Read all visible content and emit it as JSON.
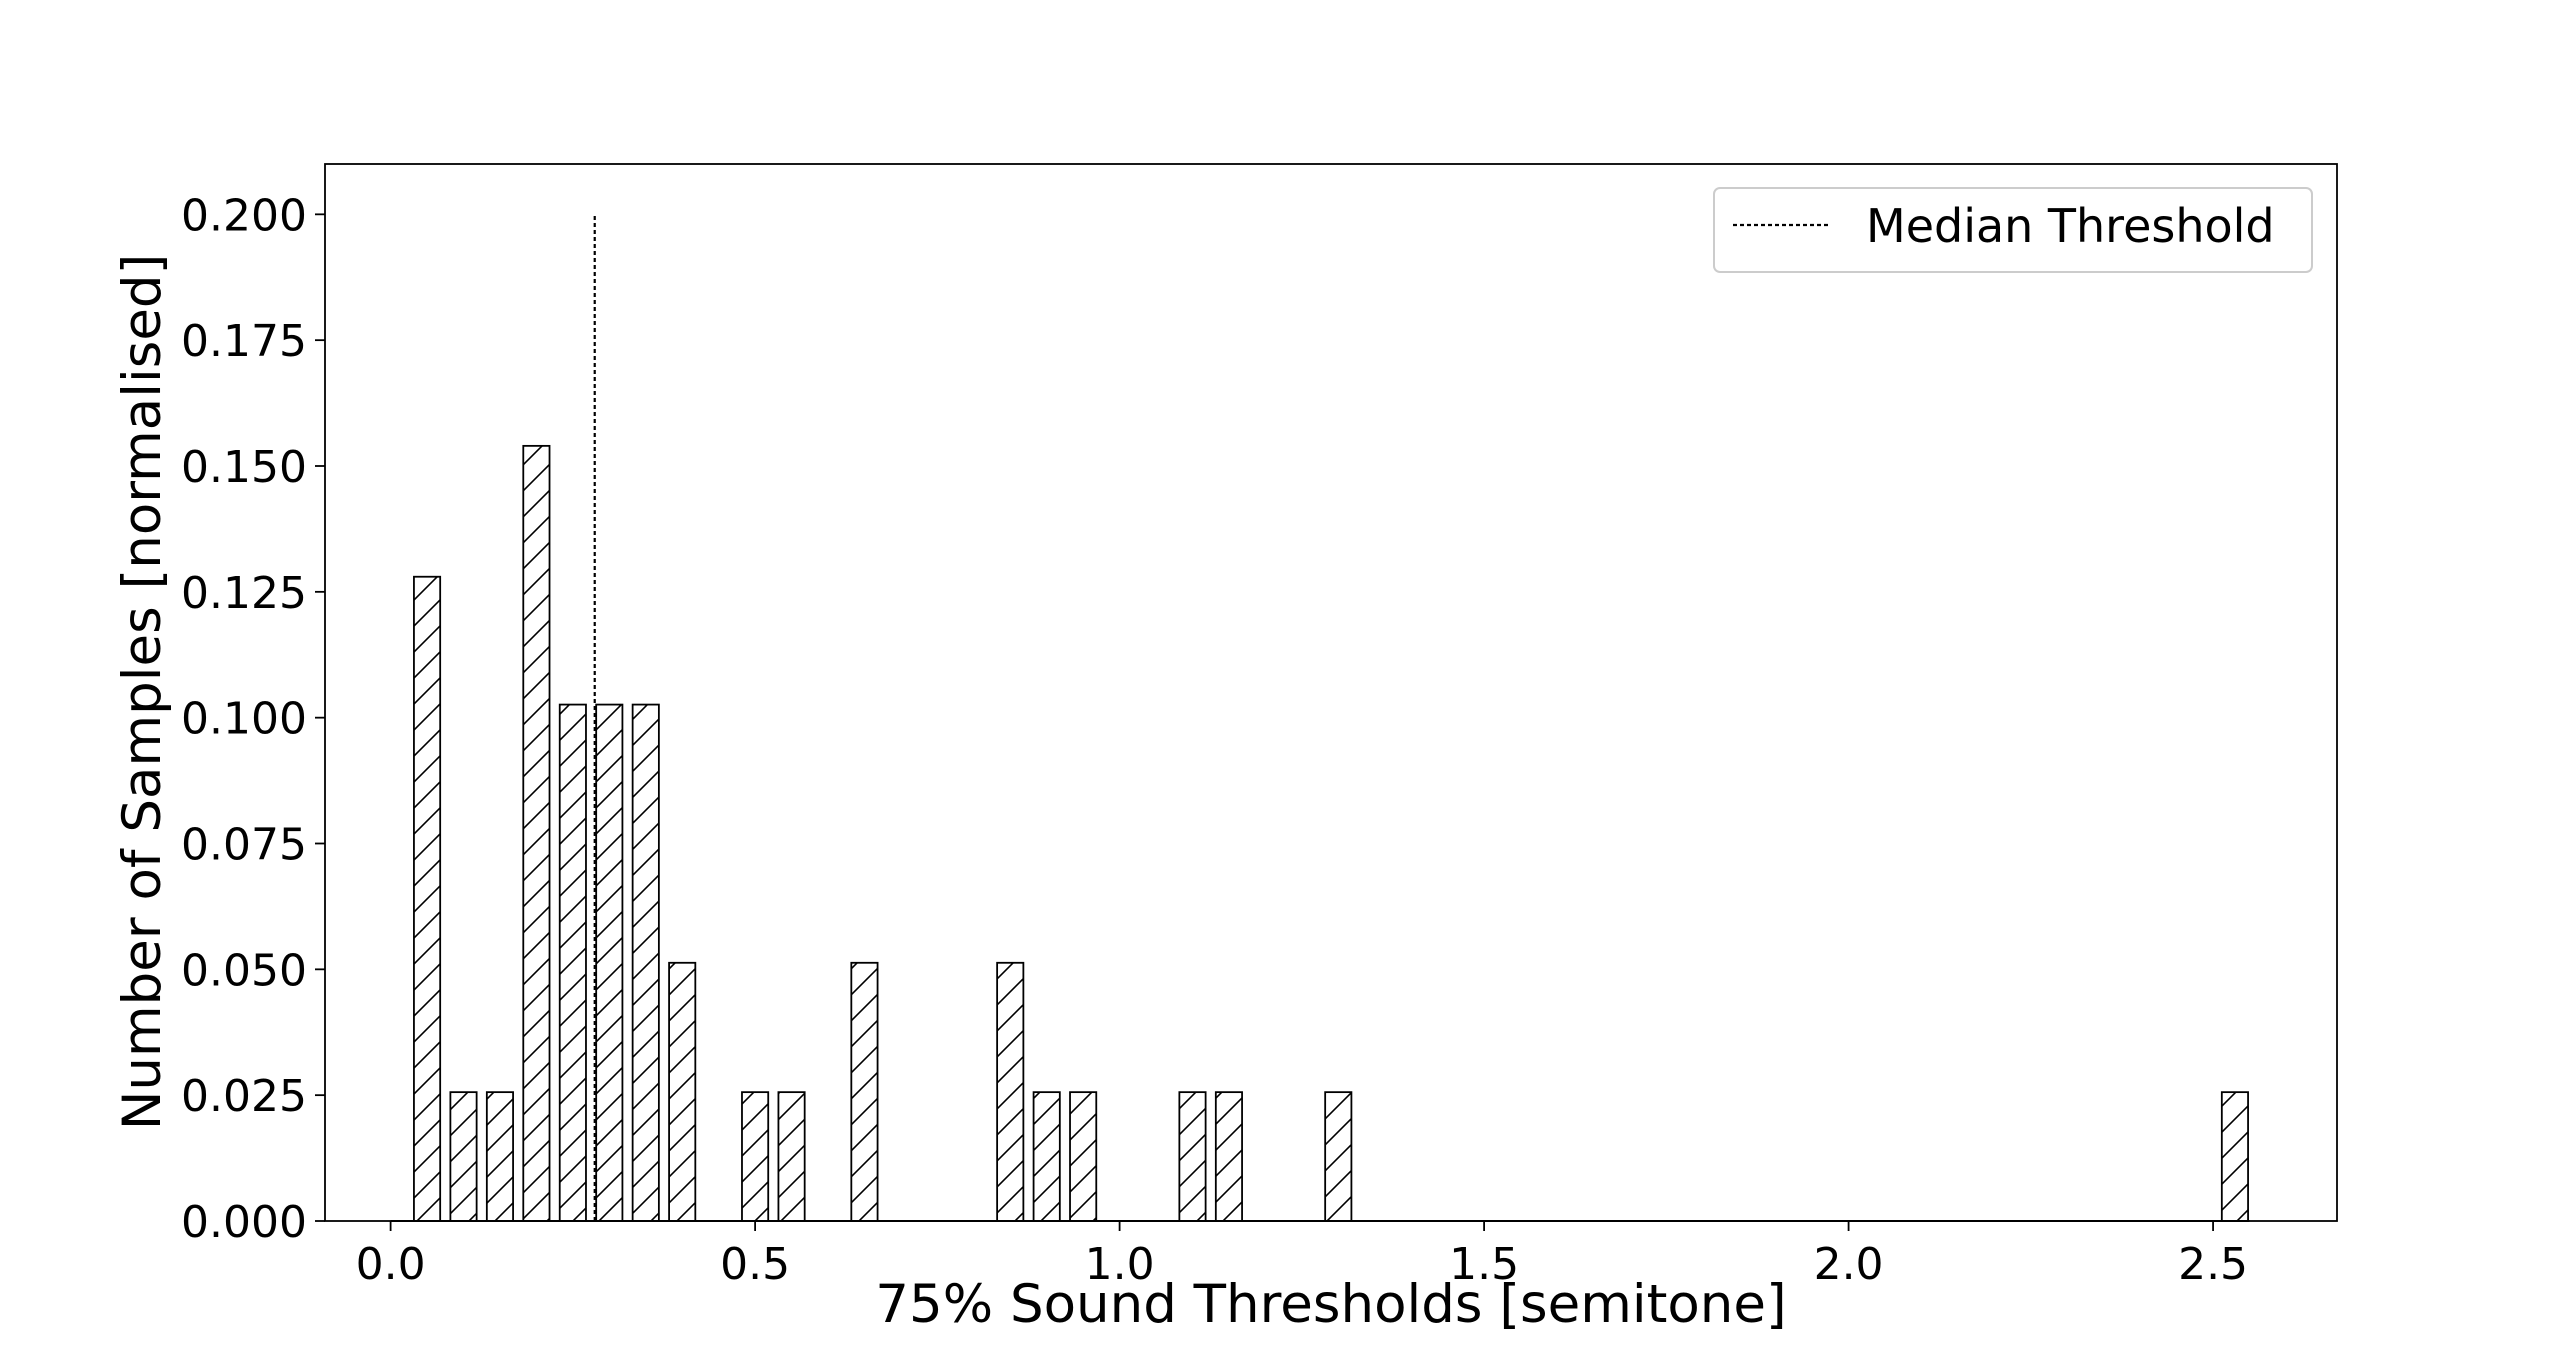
{
  "chart_data": {
    "type": "bar",
    "xlabel": "75% Sound Thresholds [semitone]",
    "ylabel": "Number of Samples [normalised]",
    "xlim": [
      -0.09,
      2.67
    ],
    "ylim": [
      0.0,
      0.21
    ],
    "x_ticks": [
      "0.0",
      "0.5",
      "1.0",
      "1.5",
      "2.0",
      "2.5"
    ],
    "y_ticks": [
      "0.000",
      "0.025",
      "0.050",
      "0.075",
      "0.100",
      "0.125",
      "0.150",
      "0.175",
      "0.200"
    ],
    "bar_width": 0.036,
    "bars": {
      "x": [
        0.05,
        0.1,
        0.15,
        0.2,
        0.25,
        0.3,
        0.35,
        0.4,
        0.5,
        0.55,
        0.65,
        0.85,
        0.9,
        0.95,
        1.1,
        1.15,
        1.3,
        2.53
      ],
      "values": [
        0.128,
        0.0256,
        0.0256,
        0.154,
        0.1026,
        0.1026,
        0.1026,
        0.0513,
        0.0256,
        0.0256,
        0.0513,
        0.0513,
        0.0256,
        0.0256,
        0.0256,
        0.0256,
        0.0256,
        0.0256
      ]
    },
    "zero_line_range": [
      0.0,
      2.55
    ],
    "median_threshold": {
      "name": "Median Threshold",
      "x": 0.28,
      "y_range": [
        0.0,
        0.2
      ]
    },
    "hatch": "diagonal",
    "legend_position": "top-right",
    "grid": false,
    "colors": {
      "bar_fill": "#ffffff",
      "bar_edge": "#000000",
      "median_line": "#000000"
    }
  }
}
